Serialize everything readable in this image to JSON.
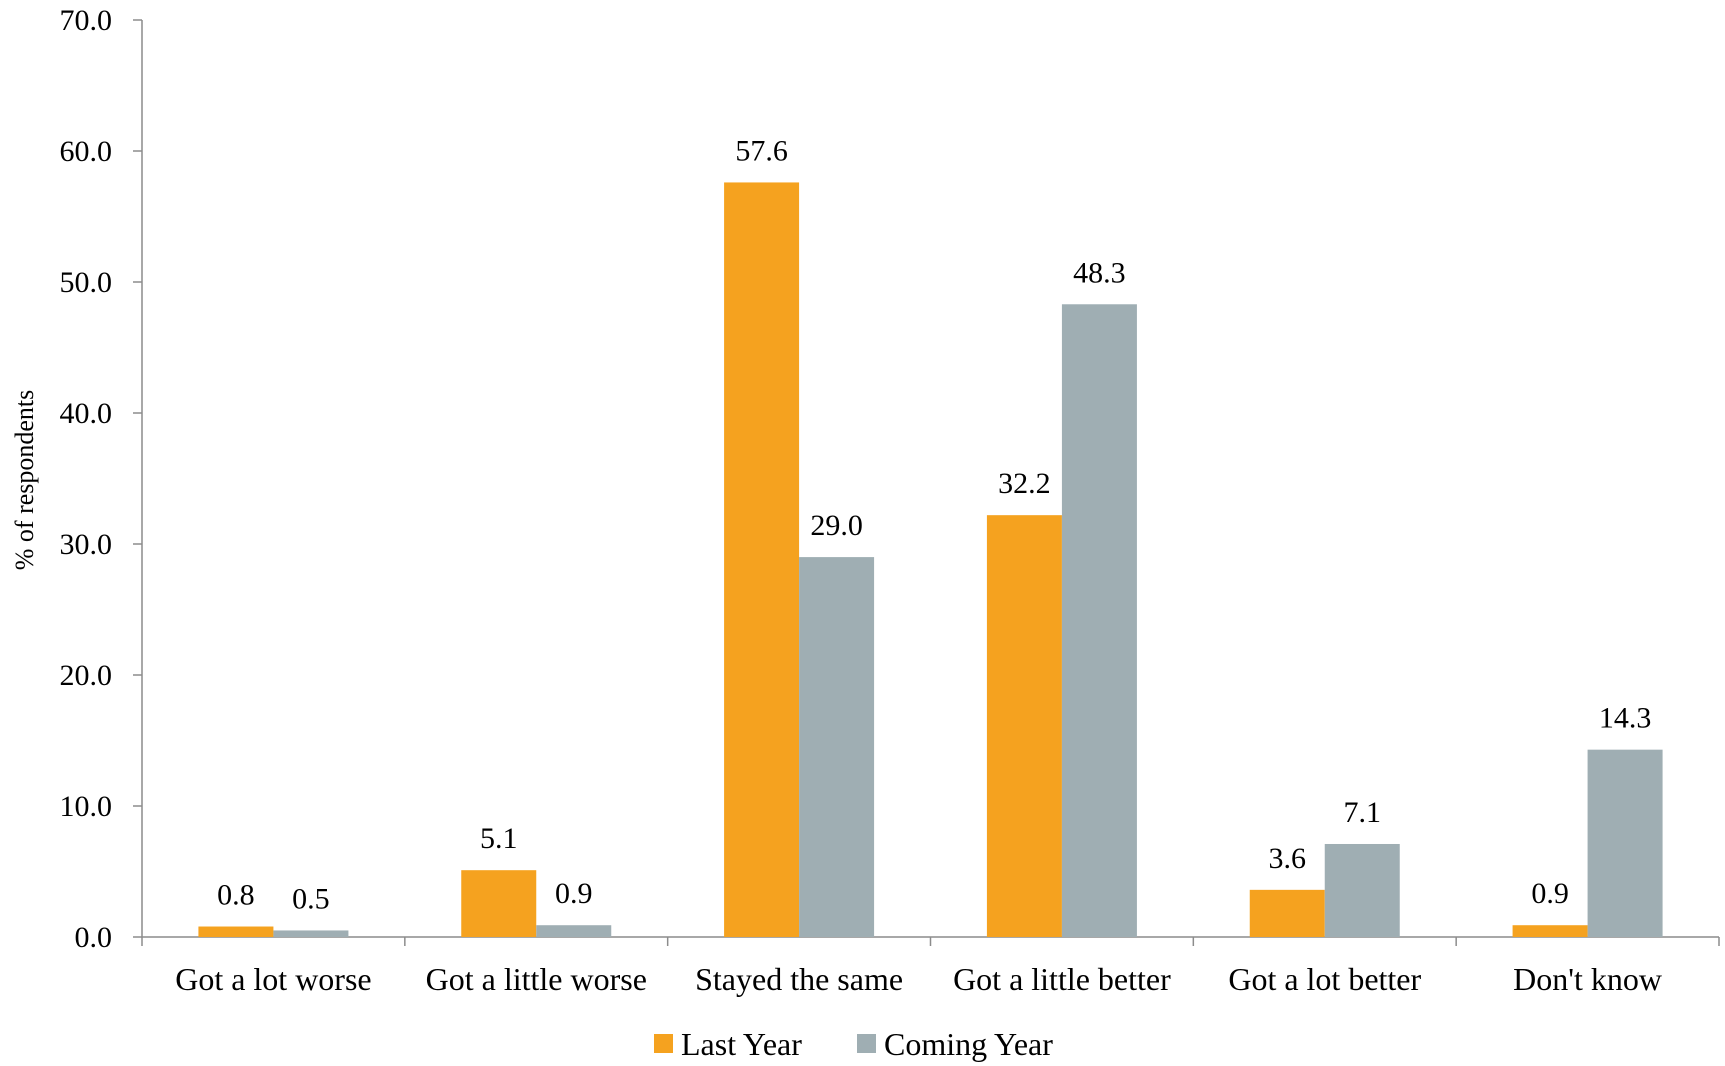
{
  "chart_data": {
    "type": "bar",
    "ylabel": "% of respondents",
    "ylim": [
      0,
      70
    ],
    "yticks": [
      "0.0",
      "10.0",
      "20.0",
      "30.0",
      "40.0",
      "50.0",
      "60.0",
      "70.0"
    ],
    "categories": [
      "Got a lot worse",
      "Got a little worse",
      "Stayed the same",
      "Got a little better",
      "Got a lot better",
      "Don't know"
    ],
    "series": [
      {
        "name": "Last Year",
        "color": "#F5A21F",
        "values": [
          0.8,
          5.1,
          57.6,
          32.2,
          3.6,
          0.9
        ],
        "labels": [
          "0.8",
          "5.1",
          "57.6",
          "32.2",
          "3.6",
          "0.9"
        ]
      },
      {
        "name": "Coming Year",
        "color": "#9FAEB3",
        "values": [
          0.5,
          0.9,
          29.0,
          48.3,
          7.1,
          14.3
        ],
        "labels": [
          "0.5",
          "0.9",
          "29.0",
          "48.3",
          "7.1",
          "14.3"
        ]
      }
    ],
    "grid": false,
    "legend_position": "bottom-center"
  }
}
